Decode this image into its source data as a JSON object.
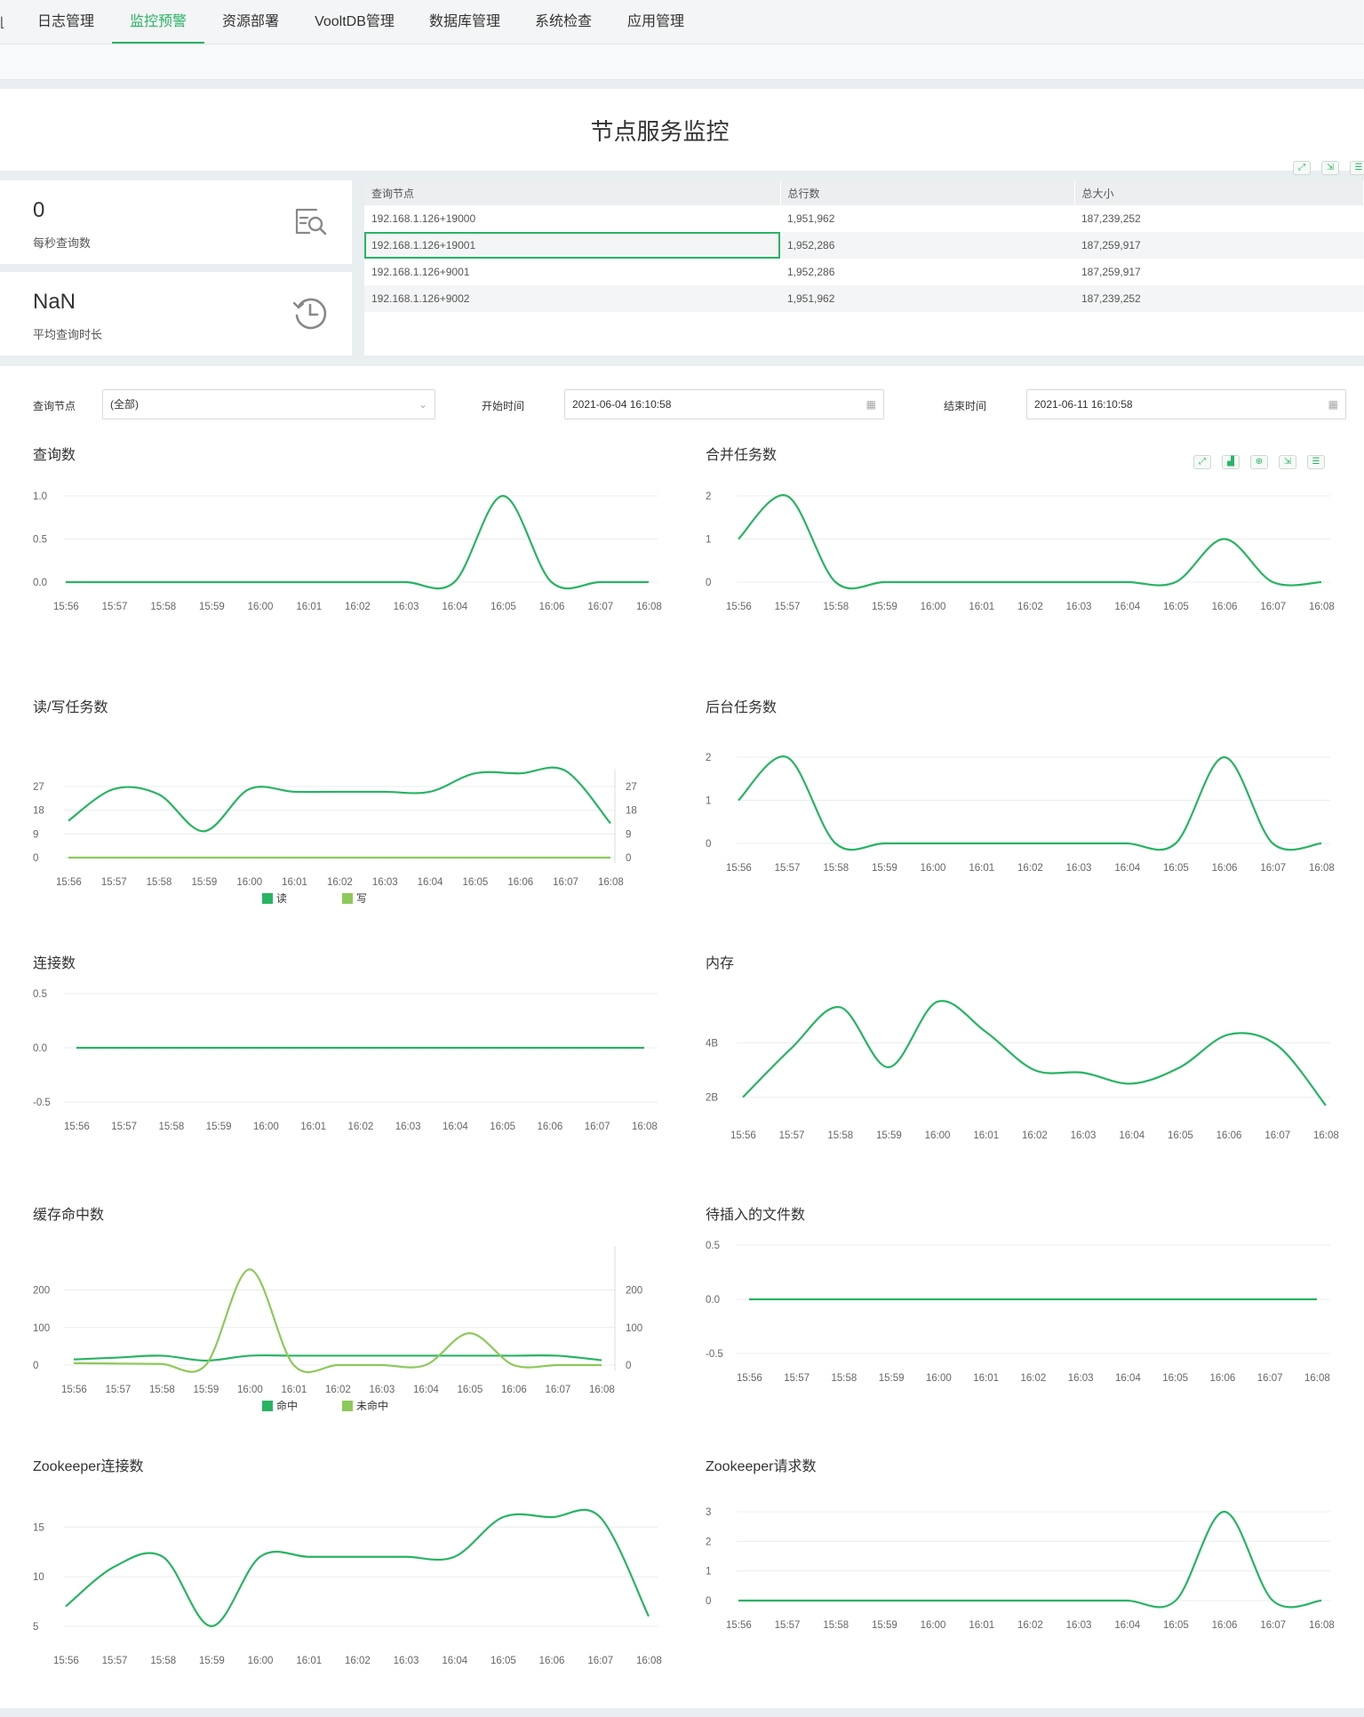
{
  "nav": {
    "edge_glyph": "⌊",
    "tabs": [
      {
        "label": "日志管理",
        "active": false
      },
      {
        "label": "监控预警",
        "active": true
      },
      {
        "label": "资源部署",
        "active": false
      },
      {
        "label": "VooltDB管理",
        "active": false
      },
      {
        "label": "数据库管理",
        "active": false
      },
      {
        "label": "系统检查",
        "active": false
      },
      {
        "label": "应用管理",
        "active": false
      }
    ]
  },
  "page": {
    "title": "节点服务监控"
  },
  "colors": {
    "accent": "#28b463",
    "line_dark": "#28b463",
    "line_light": "#8dc95a"
  },
  "stats": [
    {
      "value": "0",
      "label": "每秒查询数",
      "icon": "search-document-icon"
    },
    {
      "value": "NaN",
      "label": "平均查询时长",
      "icon": "history-clock-icon"
    }
  ],
  "node_table": {
    "headers": [
      "查询节点",
      "总行数",
      "总大小"
    ],
    "rows": [
      [
        "192.168.1.126+19000",
        "1,951,962",
        "187,239,252"
      ],
      [
        "192.168.1.126+19001",
        "1,952,286",
        "187,259,917"
      ],
      [
        "192.168.1.126+9001",
        "1,952,286",
        "187,259,917"
      ],
      [
        "192.168.1.126+9002",
        "1,951,962",
        "187,239,252"
      ]
    ],
    "selected_row": 1
  },
  "filters": {
    "node_label": "查询节点",
    "node_value": "(全部)",
    "start_label": "开始时间",
    "start_value": "2021-06-04 16:10:58",
    "end_label": "结束时间",
    "end_value": "2021-06-11 16:10:58"
  },
  "chart_data": [
    {
      "type": "line",
      "title": "查询数",
      "x": [
        "15:56",
        "15:57",
        "15:58",
        "15:59",
        "16:00",
        "16:01",
        "16:02",
        "16:03",
        "16:04",
        "16:05",
        "16:06",
        "16:07",
        "16:08"
      ],
      "series": [
        {
          "values": [
            0,
            0,
            0,
            0,
            0,
            0,
            0,
            0,
            0,
            1,
            0,
            0,
            0
          ]
        }
      ],
      "ylim": [
        0,
        1
      ],
      "yticks": [
        "0.0",
        "0.5",
        "1.0"
      ]
    },
    {
      "type": "line",
      "title": "合并任务数",
      "x": [
        "15:56",
        "15:57",
        "15:58",
        "15:59",
        "16:00",
        "16:01",
        "16:02",
        "16:03",
        "16:04",
        "16:05",
        "16:06",
        "16:07",
        "16:08"
      ],
      "series": [
        {
          "values": [
            1,
            2,
            0,
            0,
            0,
            0,
            0,
            0,
            0,
            0,
            1,
            0,
            0
          ]
        }
      ],
      "ylim": [
        0,
        2
      ],
      "yticks": [
        "0",
        "1",
        "2"
      ]
    },
    {
      "type": "line",
      "title": "读/写任务数",
      "x": [
        "15:56",
        "15:57",
        "15:58",
        "15:59",
        "16:00",
        "16:01",
        "16:02",
        "16:03",
        "16:04",
        "16:05",
        "16:06",
        "16:07",
        "16:08"
      ],
      "series": [
        {
          "name": "读",
          "values": [
            14,
            26,
            24,
            10,
            26,
            25,
            25,
            25,
            25,
            32,
            32,
            33,
            13
          ]
        },
        {
          "name": "写",
          "values": [
            0,
            0,
            0,
            0,
            0,
            0,
            0,
            0,
            0,
            0,
            0,
            0,
            0
          ]
        }
      ],
      "ylim": [
        0,
        27
      ],
      "yticks": [
        "0",
        "9",
        "18",
        "27"
      ],
      "right_axis": true
    },
    {
      "type": "line",
      "title": "后台任务数",
      "x": [
        "15:56",
        "15:57",
        "15:58",
        "15:59",
        "16:00",
        "16:01",
        "16:02",
        "16:03",
        "16:04",
        "16:05",
        "16:06",
        "16:07",
        "16:08"
      ],
      "series": [
        {
          "values": [
            1,
            2,
            0,
            0,
            0,
            0,
            0,
            0,
            0,
            0,
            2,
            0,
            0
          ]
        }
      ],
      "ylim": [
        0,
        2
      ],
      "yticks": [
        "0",
        "1",
        "2"
      ]
    },
    {
      "type": "line",
      "title": "连接数",
      "x": [
        "15:56",
        "15:57",
        "15:58",
        "15:59",
        "16:00",
        "16:01",
        "16:02",
        "16:03",
        "16:04",
        "16:05",
        "16:06",
        "16:07",
        "16:08"
      ],
      "series": [
        {
          "values": [
            0,
            0,
            0,
            0,
            0,
            0,
            0,
            0,
            0,
            0,
            0,
            0,
            0
          ]
        }
      ],
      "ylim": [
        -0.5,
        0.5
      ],
      "yticks": [
        "-0.5",
        "0.0",
        "0.5"
      ]
    },
    {
      "type": "line",
      "title": "内存",
      "x": [
        "15:56",
        "15:57",
        "15:58",
        "15:59",
        "16:00",
        "16:01",
        "16:02",
        "16:03",
        "16:04",
        "16:05",
        "16:06",
        "16:07",
        "16:08"
      ],
      "series": [
        {
          "values": [
            2.0,
            3.8,
            5.3,
            3.1,
            5.5,
            4.4,
            3.0,
            2.9,
            2.5,
            3.1,
            4.3,
            3.9,
            1.7
          ]
        }
      ],
      "ylim": [
        1.5,
        5.8
      ],
      "yticks": [
        "2B",
        "4B"
      ]
    },
    {
      "type": "line",
      "title": "缓存命中数",
      "x": [
        "15:56",
        "15:57",
        "15:58",
        "15:59",
        "16:00",
        "16:01",
        "16:02",
        "16:03",
        "16:04",
        "16:05",
        "16:06",
        "16:07",
        "16:08"
      ],
      "series": [
        {
          "name": "命中",
          "values": [
            15,
            20,
            25,
            12,
            25,
            25,
            25,
            25,
            25,
            25,
            25,
            25,
            13
          ]
        },
        {
          "name": "未命中",
          "values": [
            5,
            4,
            3,
            0,
            255,
            0,
            0,
            0,
            0,
            85,
            0,
            0,
            0
          ]
        }
      ],
      "ylim": [
        0,
        270
      ],
      "yticks": [
        "0",
        "100",
        "200"
      ],
      "right_axis": true
    },
    {
      "type": "line",
      "title": "待插入的文件数",
      "x": [
        "15:56",
        "15:57",
        "15:58",
        "15:59",
        "16:00",
        "16:01",
        "16:02",
        "16:03",
        "16:04",
        "16:05",
        "16:06",
        "16:07",
        "16:08"
      ],
      "series": [
        {
          "values": [
            0,
            0,
            0,
            0,
            0,
            0,
            0,
            0,
            0,
            0,
            0,
            0,
            0
          ]
        }
      ],
      "ylim": [
        -0.5,
        0.5
      ],
      "yticks": [
        "-0.5",
        "0.0",
        "0.5"
      ]
    },
    {
      "type": "line",
      "title": "Zookeeper连接数",
      "x": [
        "15:56",
        "15:57",
        "15:58",
        "15:59",
        "16:00",
        "16:01",
        "16:02",
        "16:03",
        "16:04",
        "16:05",
        "16:06",
        "16:07",
        "16:08"
      ],
      "series": [
        {
          "values": [
            7,
            11,
            12,
            5,
            12,
            12,
            12,
            12,
            12,
            16,
            16,
            16,
            6
          ]
        }
      ],
      "ylim": [
        4,
        17
      ],
      "yticks": [
        "5",
        "10",
        "15"
      ]
    },
    {
      "type": "line",
      "title": "Zookeeper请求数",
      "x": [
        "15:56",
        "15:57",
        "15:58",
        "15:59",
        "16:00",
        "16:01",
        "16:02",
        "16:03",
        "16:04",
        "16:05",
        "16:06",
        "16:07",
        "16:08"
      ],
      "series": [
        {
          "values": [
            0,
            0,
            0,
            0,
            0,
            0,
            0,
            0,
            0,
            0,
            3,
            0,
            0
          ]
        }
      ],
      "ylim": [
        0,
        3
      ],
      "yticks": [
        "0",
        "1",
        "2",
        "3"
      ]
    }
  ]
}
